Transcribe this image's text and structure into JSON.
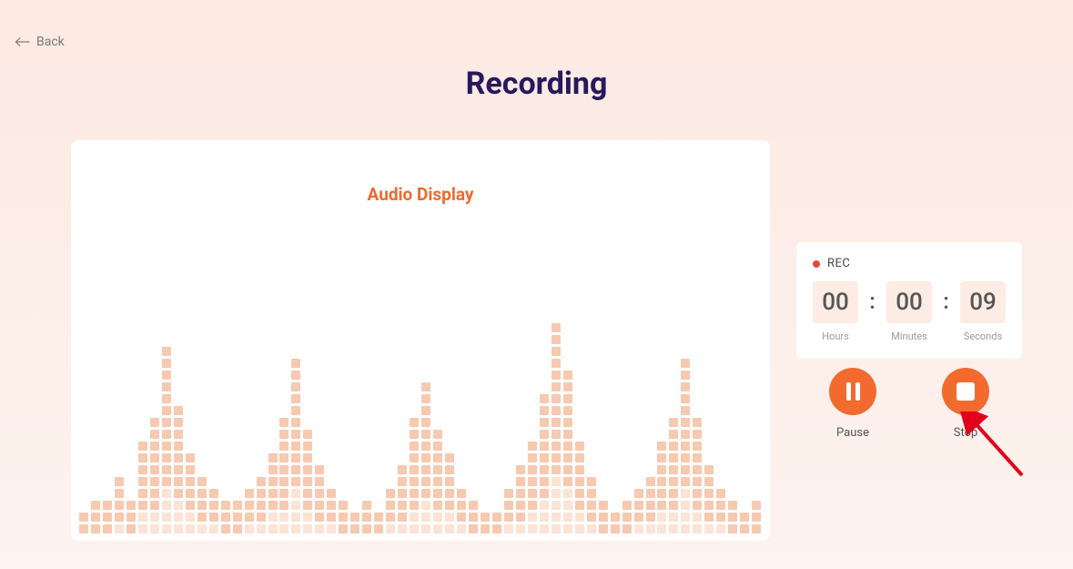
{
  "nav": {
    "back_label": "Back"
  },
  "page": {
    "title": "Recording"
  },
  "audio": {
    "title": "Audio Display",
    "eq_heights": [
      2,
      3,
      3,
      5,
      3,
      8,
      10,
      16,
      11,
      7,
      5,
      4,
      3,
      3,
      4,
      5,
      7,
      10,
      15,
      9,
      6,
      4,
      3,
      2,
      3,
      2,
      4,
      6,
      10,
      13,
      9,
      7,
      4,
      3,
      2,
      2,
      4,
      6,
      8,
      12,
      18,
      14,
      8,
      5,
      3,
      2,
      3,
      4,
      5,
      8,
      10,
      15,
      10,
      6,
      4,
      3,
      2,
      3
    ]
  },
  "recorder": {
    "status": "REC",
    "hours": "00",
    "hours_label": "Hours",
    "minutes": "00",
    "minutes_label": "Minutes",
    "seconds": "09",
    "seconds_label": "Seconds",
    "separator": ":"
  },
  "controls": {
    "pause_label": "Pause",
    "stop_label": "Stop"
  },
  "colors": {
    "accent": "#f26a2e",
    "title": "#26195c",
    "eq_bar": "#f6c9b0",
    "eq_bar_light": "#fbe3d5",
    "timer_box_bg": "#fdece4"
  }
}
